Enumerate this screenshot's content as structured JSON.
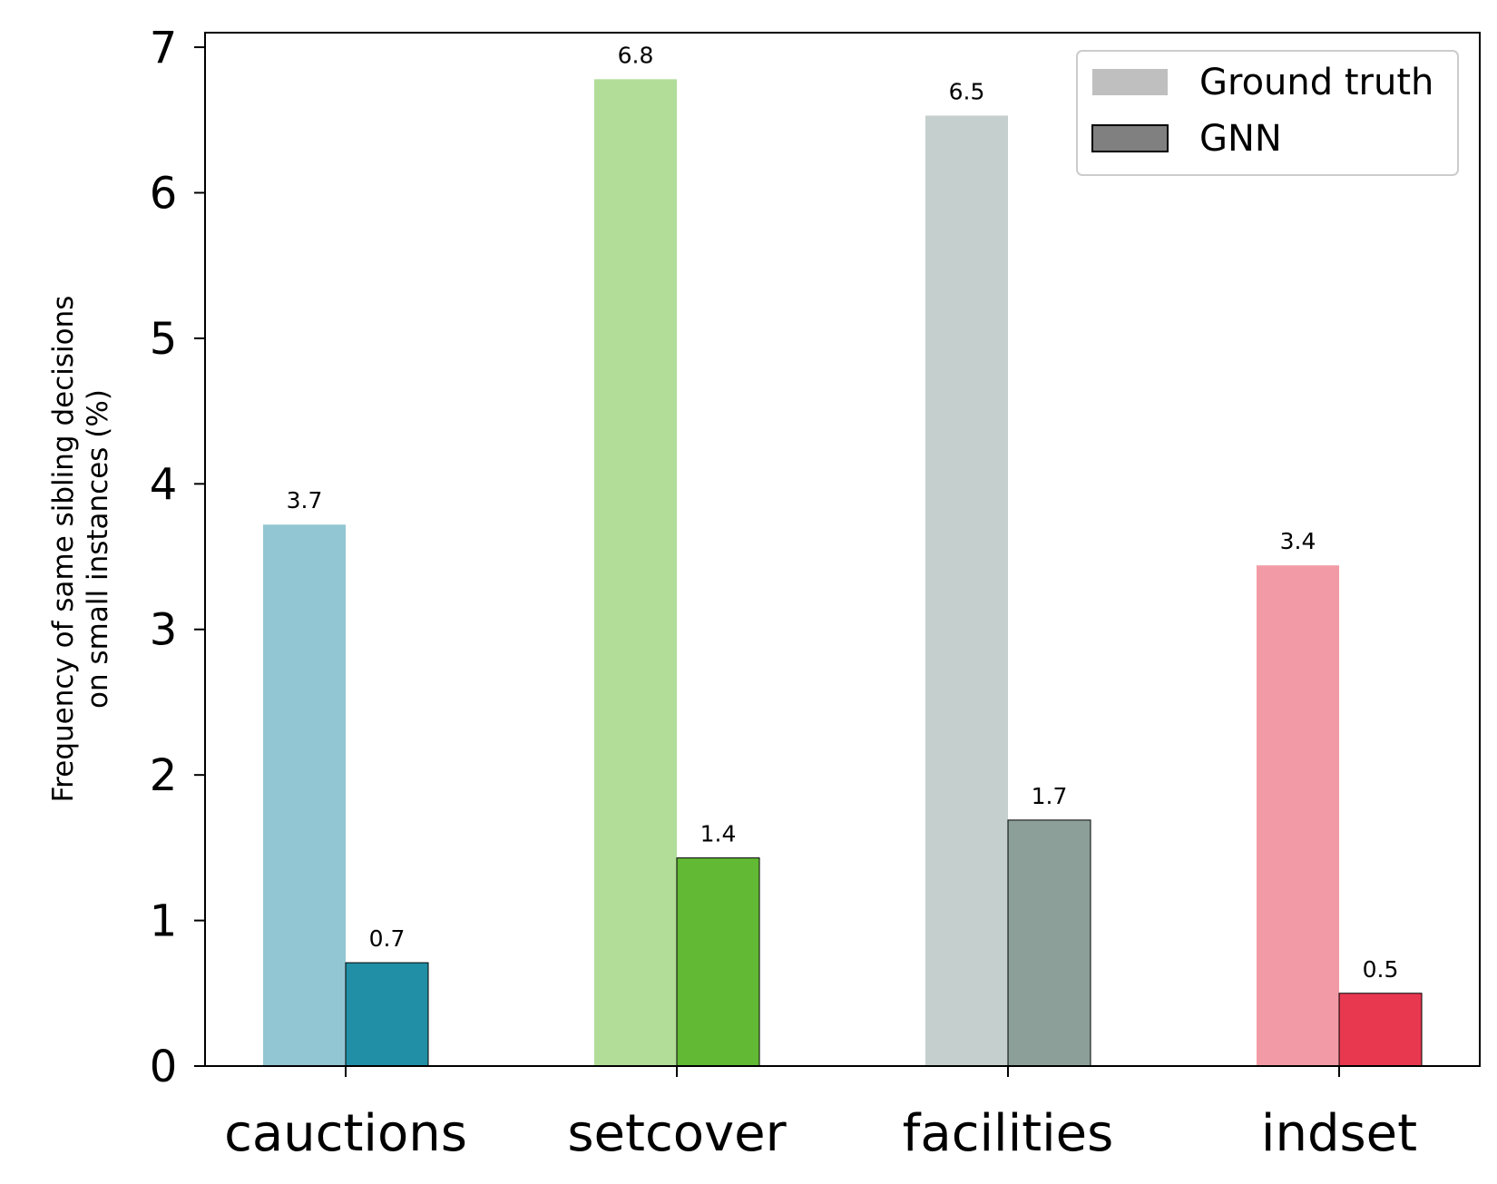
{
  "chart_data": {
    "type": "bar",
    "categories": [
      "cauctions",
      "setcover",
      "facilities",
      "indset"
    ],
    "series": [
      {
        "name": "Ground truth",
        "values": [
          3.72,
          6.78,
          6.53,
          3.44
        ],
        "labels": [
          "3.7",
          "6.8",
          "6.5",
          "3.4"
        ],
        "colors": [
          "#92c6d2",
          "#b1dd98",
          "#c5cfcd",
          "#f29ba6"
        ],
        "legend_color": "#bfbfbf"
      },
      {
        "name": "GNN",
        "values": [
          0.71,
          1.43,
          1.69,
          0.5
        ],
        "labels": [
          "0.7",
          "1.4",
          "1.7",
          "0.5"
        ],
        "colors": [
          "#218fa5",
          "#62b934",
          "#8d9f99",
          "#e73850"
        ],
        "legend_color": "#808080"
      }
    ],
    "ylabel": "Frequency of same sibling decisions\non small instances (%)",
    "ylim": [
      0,
      7.1
    ],
    "yticks": [
      0,
      1,
      2,
      3,
      4,
      5,
      6,
      7
    ],
    "legend_position": "top-right",
    "grid": false
  }
}
